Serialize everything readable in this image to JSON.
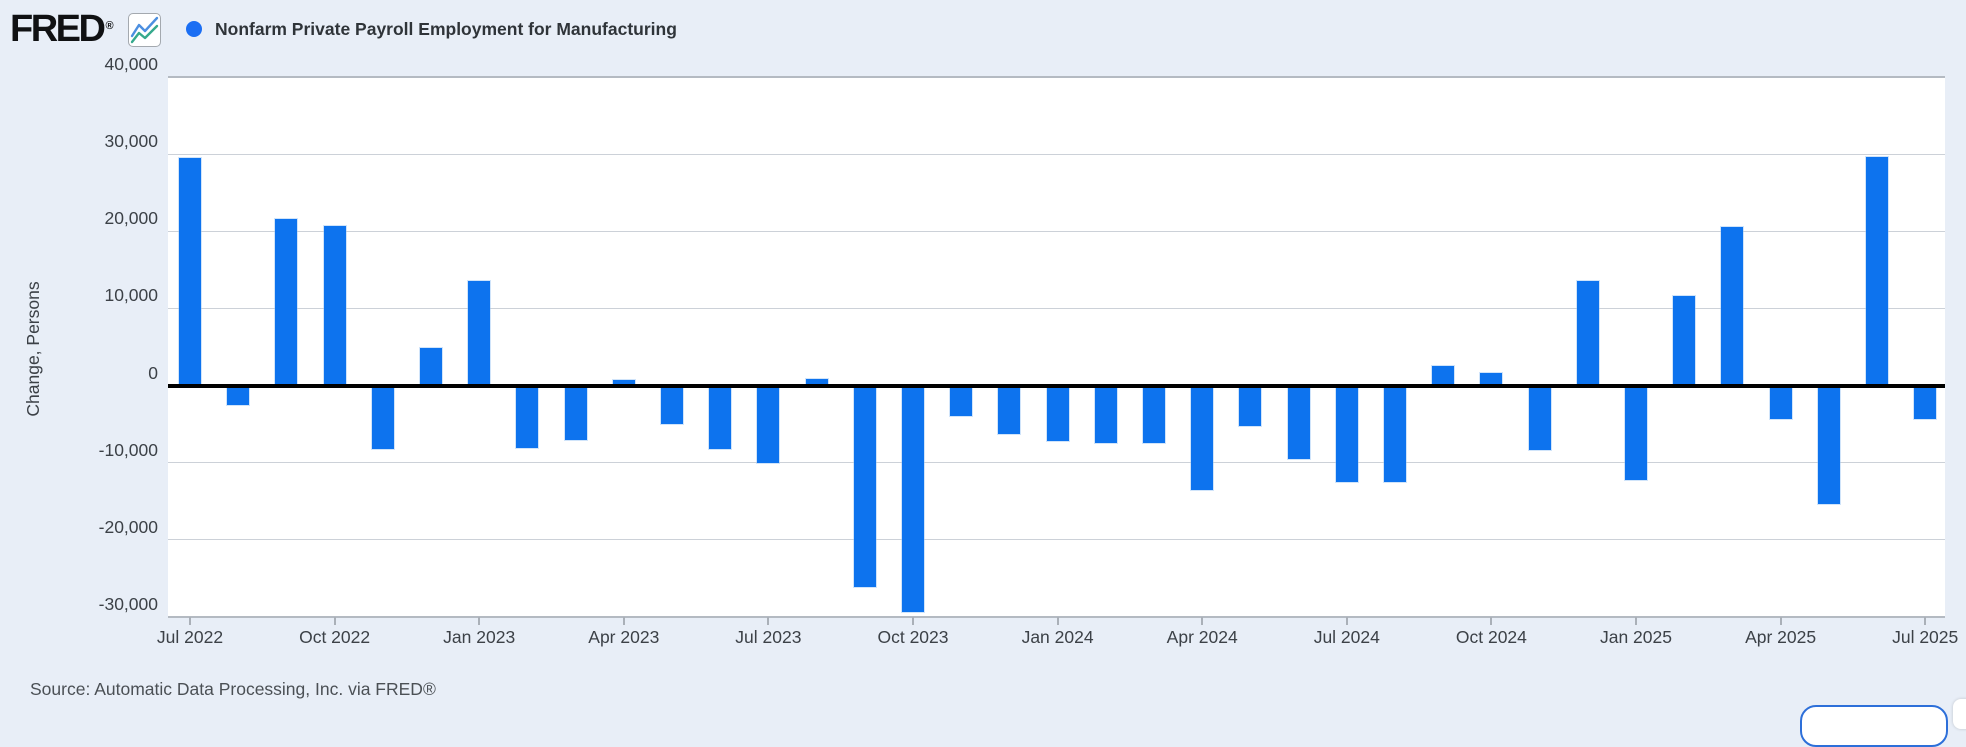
{
  "page": {
    "background": "#e8eef7"
  },
  "header": {
    "logo_text": "FRED",
    "logo_registered": "®",
    "logo_icon": "fred-sparkline-icon",
    "legend_dot_icon": "series-legend-dot",
    "legend_dot_color": "#1b6ef3",
    "title": "Nonfarm Private Payroll Employment for Manufacturing"
  },
  "footer": {
    "source": "Source: Automatic Data Processing, Inc. via FRED®"
  },
  "chart_data": {
    "type": "bar",
    "title": "Nonfarm Private Payroll Employment for Manufacturing",
    "xlabel": "",
    "ylabel": "Change, Persons",
    "bar_color": "#0d73ee",
    "grid": true,
    "legend_position": "top-left",
    "ylim": [
      -30000,
      40000
    ],
    "y_tick_values": [
      40000,
      30000,
      20000,
      10000,
      0,
      -10000,
      -20000,
      -30000
    ],
    "y_tick_labels": [
      "40,000",
      "30,000",
      "20,000",
      "10,000",
      "0",
      "-10,000",
      "-20,000",
      "-30,000"
    ],
    "x_tick_labels": [
      "Jul 2022",
      "Oct 2022",
      "Jan 2023",
      "Apr 2023",
      "Jul 2023",
      "Oct 2023",
      "Jan 2024",
      "Apr 2024",
      "Jul 2024",
      "Oct 2024",
      "Jan 2025",
      "Apr 2025",
      "Jul 2025"
    ],
    "categories": [
      "Jul 2022",
      "Aug 2022",
      "Sep 2022",
      "Oct 2022",
      "Nov 2022",
      "Dec 2022",
      "Jan 2023",
      "Feb 2023",
      "Mar 2023",
      "Apr 2023",
      "May 2023",
      "Jun 2023",
      "Jul 2023",
      "Aug 2023",
      "Sep 2023",
      "Oct 2023",
      "Nov 2023",
      "Dec 2023",
      "Jan 2024",
      "Feb 2024",
      "Mar 2024",
      "Apr 2024",
      "May 2024",
      "Jun 2024",
      "Jul 2024",
      "Aug 2024",
      "Sep 2024",
      "Oct 2024",
      "Nov 2024",
      "Dec 2024",
      "Jan 2025",
      "Feb 2025",
      "Mar 2025",
      "Apr 2025",
      "May 2025",
      "Jun 2025",
      "Jul 2025"
    ],
    "values": [
      29500,
      -2500,
      21600,
      20700,
      -8200,
      4900,
      13600,
      -8100,
      -7100,
      700,
      -5000,
      -8200,
      -10100,
      800,
      -26100,
      -29300,
      -4000,
      -6300,
      -7200,
      -7500,
      -7500,
      -13600,
      -5300,
      -9500,
      -12500,
      -12500,
      2500,
      1600,
      -8400,
      13600,
      -12200,
      11600,
      20500,
      -4300,
      -15300,
      29600,
      -4300
    ]
  }
}
